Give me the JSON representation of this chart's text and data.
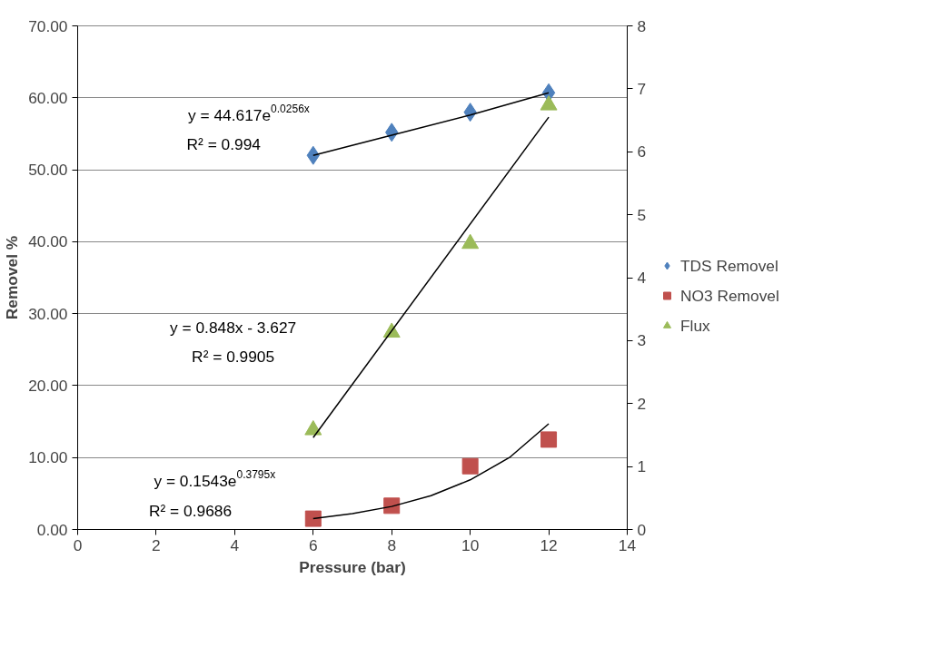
{
  "chart_data": {
    "type": "scatter",
    "xlabel": "Pressure (bar)",
    "ylabel": "Removel %",
    "xlim": [
      0,
      14
    ],
    "xticks": [
      0,
      2,
      4,
      6,
      8,
      10,
      12,
      14
    ],
    "ylim": [
      0,
      70
    ],
    "yticks": [
      {
        "value": 0,
        "label": "0.00"
      },
      {
        "value": 10,
        "label": "10.00"
      },
      {
        "value": 20,
        "label": "20.00"
      },
      {
        "value": 30,
        "label": "30.00"
      },
      {
        "value": 40,
        "label": "40.00"
      },
      {
        "value": 50,
        "label": "50.00"
      },
      {
        "value": 60,
        "label": "60.00"
      },
      {
        "value": 70,
        "label": "70.00"
      }
    ],
    "y2lim": [
      0,
      8
    ],
    "y2ticks": [
      0,
      1,
      2,
      3,
      4,
      5,
      6,
      7,
      8
    ],
    "grid": "y",
    "legend": "right",
    "series": [
      {
        "name": "TDS Removel",
        "marker": "diamond",
        "color": "#4f81bd",
        "x": [
          6,
          8,
          10,
          12
        ],
        "values": [
          52.0,
          55.2,
          58.0,
          60.7
        ]
      },
      {
        "name": "NO3 Removel",
        "marker": "square",
        "color": "#c0504d",
        "x": [
          6,
          8,
          10,
          12
        ],
        "values": [
          1.5,
          3.3,
          8.8,
          12.5
        ]
      },
      {
        "name": "Flux",
        "marker": "triangle",
        "color": "#9bbb59",
        "axis": "y2",
        "x": [
          6,
          8,
          10,
          12
        ],
        "values": [
          1.58,
          3.13,
          4.54,
          6.74
        ]
      },
      {
        "type": "line",
        "color": "#000000",
        "x": [
          6,
          8,
          10,
          12
        ],
        "values": [
          52.0,
          54.8,
          57.6,
          60.7
        ]
      },
      {
        "type": "line",
        "color": "#000000",
        "x": [
          6,
          7,
          8,
          9,
          10,
          11,
          12
        ],
        "values": [
          1.5,
          2.2,
          3.2,
          4.7,
          6.9,
          10.0,
          14.7
        ]
      },
      {
        "type": "line",
        "color": "#000000",
        "axis": "y2",
        "x": [
          6,
          12
        ],
        "values": [
          1.46,
          6.55
        ]
      }
    ],
    "annotations": [
      "y = 44.617e$^{0.0256x}$",
      "R² = 0.994",
      "y = 0.848x - 3.627",
      "R² = 0.9905",
      "y = 0.1543e$^{0.3795x}$",
      "R² = 0.9686"
    ]
  }
}
